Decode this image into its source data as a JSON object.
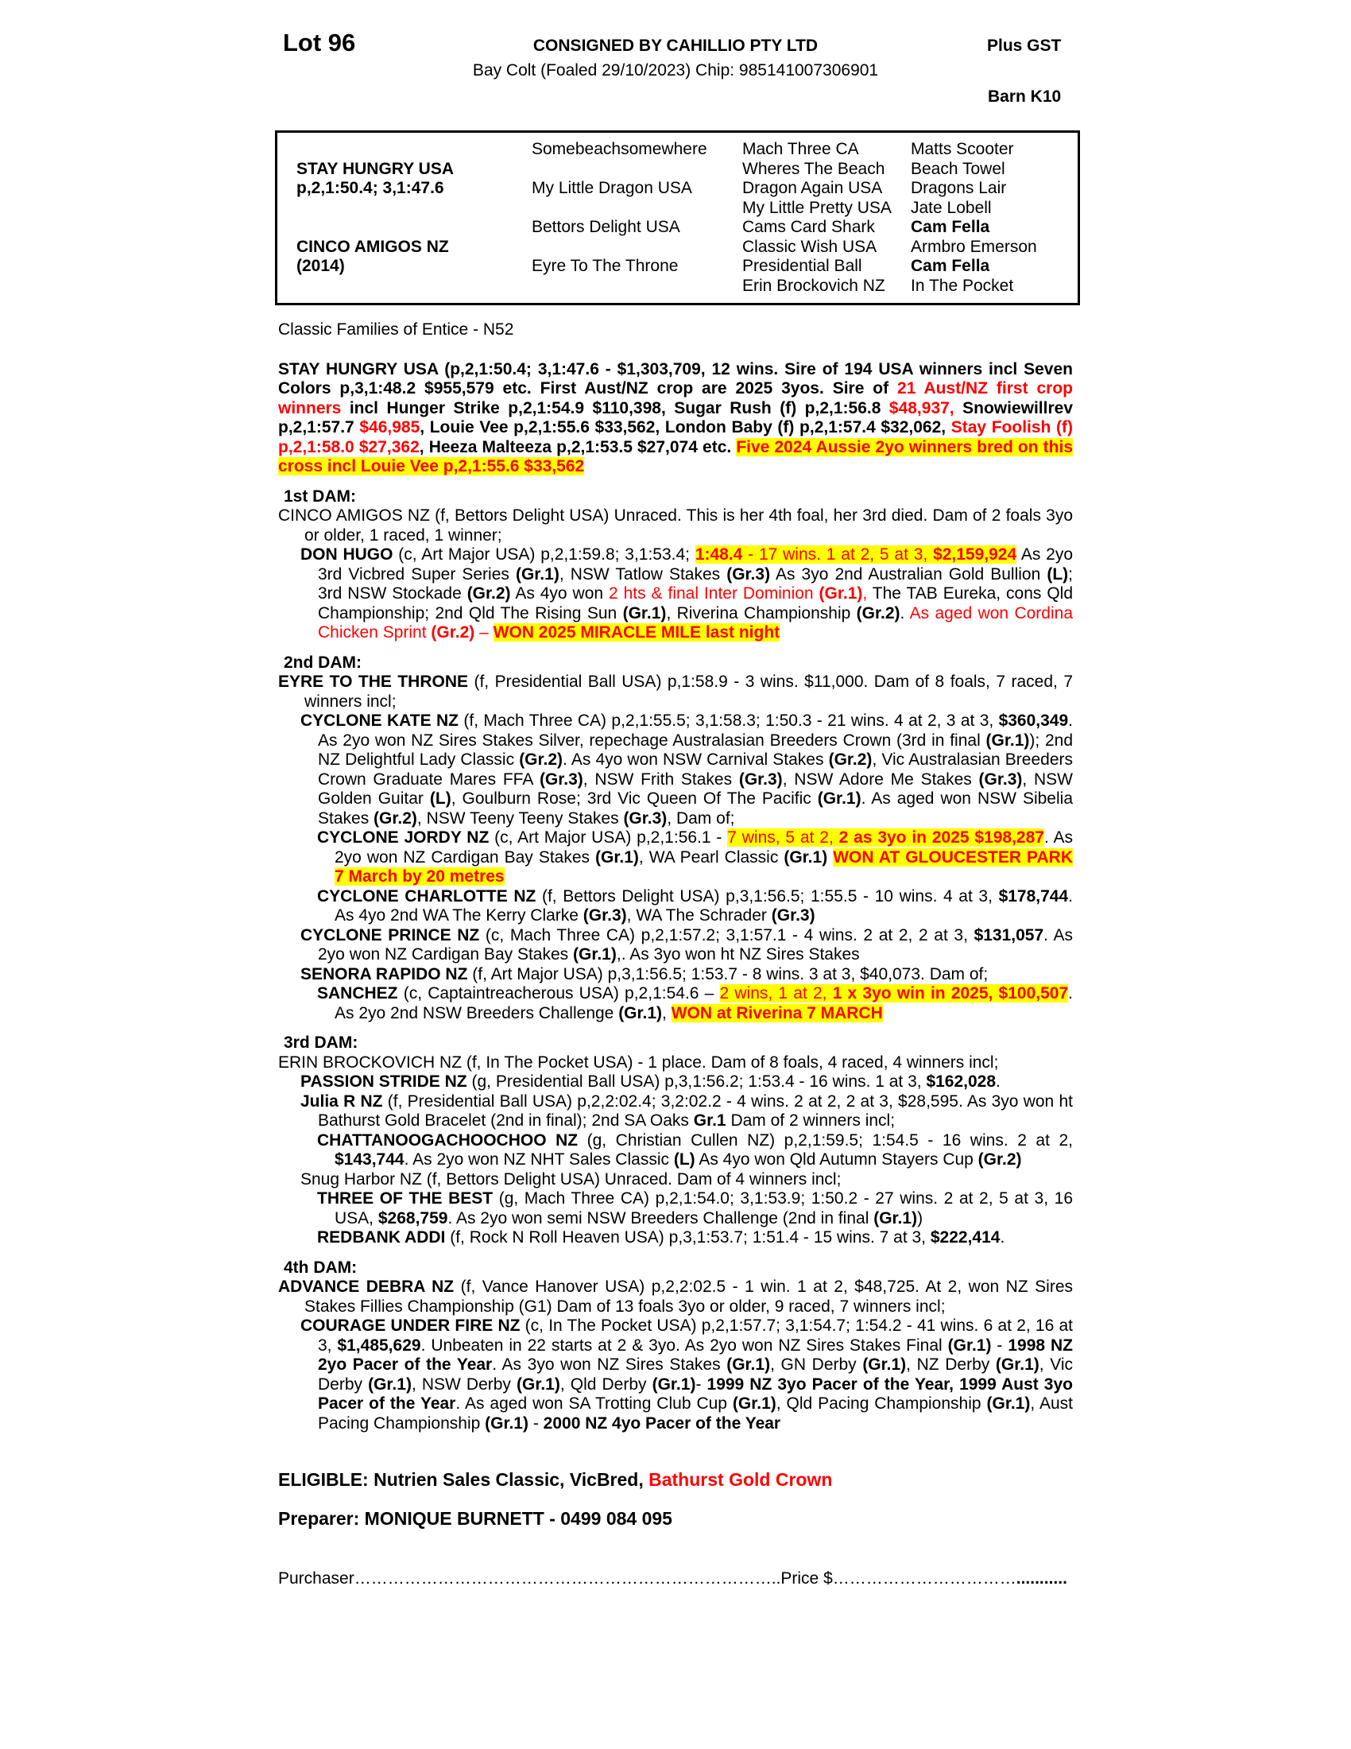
{
  "header": {
    "lot": "Lot 96",
    "consignor": "CONSIGNED BY CAHILLIO PTY LTD",
    "foal_info": "Bay Colt (Foaled 29/10/2023) Chip: 985141007306901",
    "gst": "Plus GST",
    "barn": "Barn K10"
  },
  "pedigree_table": {
    "cells": [
      {
        "r": 1,
        "c": 2,
        "t": "Somebeachsomewhere",
        "b": false
      },
      {
        "r": 1,
        "c": 3,
        "t": "Mach Three CA",
        "b": false
      },
      {
        "r": 1,
        "c": 4,
        "t": "Matts Scooter",
        "b": false
      },
      {
        "r": 2,
        "c": 1,
        "t": "STAY HUNGRY USA",
        "b": true
      },
      {
        "r": 2,
        "c": 3,
        "t": "Wheres The Beach",
        "b": false
      },
      {
        "r": 2,
        "c": 4,
        "t": "Beach Towel",
        "b": false
      },
      {
        "r": 3,
        "c": 1,
        "t": "p,2,1:50.4; 3,1:47.6",
        "b": true
      },
      {
        "r": 3,
        "c": 2,
        "t": "My Little Dragon USA",
        "b": false
      },
      {
        "r": 3,
        "c": 3,
        "t": "Dragon Again USA",
        "b": false
      },
      {
        "r": 3,
        "c": 4,
        "t": "Dragons Lair",
        "b": false
      },
      {
        "r": 4,
        "c": 3,
        "t": "My Little Pretty USA",
        "b": false
      },
      {
        "r": 4,
        "c": 4,
        "t": "Jate Lobell",
        "b": false
      },
      {
        "r": 5,
        "c": 2,
        "t": "Bettors Delight USA",
        "b": false
      },
      {
        "r": 5,
        "c": 3,
        "t": "Cams Card Shark",
        "b": false
      },
      {
        "r": 5,
        "c": 4,
        "t": "Cam Fella",
        "b": true
      },
      {
        "r": 6,
        "c": 1,
        "t": "CINCO AMIGOS NZ",
        "b": true
      },
      {
        "r": 6,
        "c": 3,
        "t": "Classic Wish USA",
        "b": false
      },
      {
        "r": 6,
        "c": 4,
        "t": "Armbro Emerson",
        "b": false
      },
      {
        "r": 7,
        "c": 1,
        "t": "(2014)",
        "b": true
      },
      {
        "r": 7,
        "c": 2,
        "t": "Eyre To The Throne",
        "b": false
      },
      {
        "r": 7,
        "c": 3,
        "t": "Presidential Ball",
        "b": false
      },
      {
        "r": 7,
        "c": 4,
        "t": "Cam Fella",
        "b": true
      },
      {
        "r": 8,
        "c": 3,
        "t": "Erin Brockovich NZ",
        "b": false
      },
      {
        "r": 8,
        "c": 4,
        "t": "In The Pocket",
        "b": false
      }
    ]
  },
  "family_line": "Classic Families of Entice - N52",
  "headings": {
    "dam1": "1st DAM:",
    "dam2": "2nd DAM:",
    "dam3": "3rd DAM:",
    "dam4": "4th DAM:"
  },
  "colors": {
    "highlight": "#ffff00",
    "accent_red": "#ff0000",
    "text": "#000000"
  },
  "paragraphs": {
    "sire": [
      {
        "t": "STAY HUNGRY USA (p,2,1:50.4; 3,1:47.6 - $1,303,709, 12 wins. Sire of 194 USA winners incl Seven Colors p,3,1:48.2 $955,579 etc. First Aust/NZ  crop are 2025 3yos. Sire of ",
        "s": ""
      },
      {
        "t": "21 Aust/NZ first crop winners",
        "s": "rb"
      },
      {
        "t": " incl Hunger Strike p,2,1:54.9 $110,398, Sugar Rush (f) p,2,1:56.8 ",
        "s": ""
      },
      {
        "t": "$48,937,",
        "s": "rb"
      },
      {
        "t": " Snowiewillrev p,2,1:57.7 ",
        "s": ""
      },
      {
        "t": "$46,985",
        "s": "rb"
      },
      {
        "t": ", Louie Vee p,2,1:55.6 $33,562, London Baby (f) p,2,1:57.4 $32,062, ",
        "s": ""
      },
      {
        "t": "Stay Foolish (f) p,2,1:58.0 $27,362",
        "s": "rb"
      },
      {
        "t": ", Heeza Malteeza p,2,1:53.5 $27,074 etc. ",
        "s": ""
      },
      {
        "t": "Five 2024 Aussie 2yo winners bred on this cross incl Louie Vee p,2,1:55.6 $33,562",
        "s": "hrb"
      }
    ],
    "cinco": [
      {
        "t": "CINCO AMIGOS NZ (f, Bettors Delight USA) Unraced. This is her 4th foal, her 3rd died. Dam of 2 foals 3yo or older, 1 raced, 1 winner;",
        "s": ""
      }
    ],
    "don_hugo": [
      {
        "t": "DON HUGO",
        "s": "b"
      },
      {
        "t": " (c, Art Major USA) p,2,1:59.8; 3,1:53.4; ",
        "s": ""
      },
      {
        "t": "1:48.4",
        "s": "hrb"
      },
      {
        "t": " - 17 wins. 1 at 2, 5 at 3, ",
        "s": "hr"
      },
      {
        "t": "$2,159,924",
        "s": "hrb"
      },
      {
        "t": " As 2yo 3rd Vicbred Super Series ",
        "s": ""
      },
      {
        "t": "(Gr.1)",
        "s": "b"
      },
      {
        "t": ", NSW Tatlow Stakes ",
        "s": ""
      },
      {
        "t": "(Gr.3)",
        "s": "b"
      },
      {
        "t": " As 3yo 2nd Australian Gold Bullion ",
        "s": ""
      },
      {
        "t": "(L)",
        "s": "b"
      },
      {
        "t": "; 3rd NSW Stockade ",
        "s": ""
      },
      {
        "t": "(Gr.2)",
        "s": "b"
      },
      {
        "t": " As 4yo won  ",
        "s": ""
      },
      {
        "t": "2 hts & final Inter Dominion ",
        "s": "r"
      },
      {
        "t": "(Gr.1)",
        "s": "rb"
      },
      {
        "t": ",",
        "s": "r"
      },
      {
        "t": " The TAB Eureka, cons Qld Championship; 2nd Qld The Rising Sun ",
        "s": ""
      },
      {
        "t": "(Gr.1)",
        "s": "b"
      },
      {
        "t": ", Riverina Championship ",
        "s": ""
      },
      {
        "t": "(Gr.2)",
        "s": "b"
      },
      {
        "t": ". ",
        "s": ""
      },
      {
        "t": "As aged won Cordina Chicken Sprint ",
        "s": "r"
      },
      {
        "t": "(Gr.2)",
        "s": "rb"
      },
      {
        "t": " – ",
        "s": "r"
      },
      {
        "t": "WON 2025 MIRACLE MILE last night",
        "s": "hrb"
      }
    ],
    "eyre": [
      {
        "t": "EYRE TO THE THRONE",
        "s": "b"
      },
      {
        "t": " (f, Presidential Ball USA) p,1:58.9 - 3 wins. $11,000. Dam of 8 foals, 7 raced, 7 winners incl;",
        "s": ""
      }
    ],
    "cyclone_kate": [
      {
        "t": "CYCLONE KATE NZ",
        "s": "b"
      },
      {
        "t": " (f, Mach Three CA) p,2,1:55.5; 3,1:58.3; 1:50.3 - 21 wins. 4 at 2, 3 at 3, ",
        "s": ""
      },
      {
        "t": "$360,349",
        "s": "b"
      },
      {
        "t": ". As 2yo won NZ Sires Stakes Silver, repechage Australasian Breeders Crown (3rd in final ",
        "s": ""
      },
      {
        "t": "(Gr.1)",
        "s": "b"
      },
      {
        "t": "); 2nd NZ Delightful Lady Classic ",
        "s": ""
      },
      {
        "t": "(Gr.2)",
        "s": "b"
      },
      {
        "t": ". As 4yo won NSW Carnival Stakes ",
        "s": ""
      },
      {
        "t": "(Gr.2)",
        "s": "b"
      },
      {
        "t": ", Vic Australasian Breeders Crown Graduate Mares FFA ",
        "s": ""
      },
      {
        "t": "(Gr.3)",
        "s": "b"
      },
      {
        "t": ", NSW Frith Stakes ",
        "s": ""
      },
      {
        "t": "(Gr.3)",
        "s": "b"
      },
      {
        "t": ", NSW Adore Me Stakes ",
        "s": ""
      },
      {
        "t": "(Gr.3)",
        "s": "b"
      },
      {
        "t": ", NSW Golden Guitar ",
        "s": ""
      },
      {
        "t": "(L)",
        "s": "b"
      },
      {
        "t": ", Goulburn Rose; 3rd Vic Queen Of The Pacific ",
        "s": ""
      },
      {
        "t": "(Gr.1)",
        "s": "b"
      },
      {
        "t": ". As aged won NSW Sibelia Stakes ",
        "s": ""
      },
      {
        "t": "(Gr.2)",
        "s": "b"
      },
      {
        "t": ", NSW Teeny Teeny Stakes ",
        "s": ""
      },
      {
        "t": "(Gr.3)",
        "s": "b"
      },
      {
        "t": ", Dam of;",
        "s": ""
      }
    ],
    "cyclone_jordy": [
      {
        "t": "CYCLONE JORDY NZ",
        "s": "b"
      },
      {
        "t": " (c, Art Major USA) p,2,1:56.1 - ",
        "s": ""
      },
      {
        "t": "7 wins, 5 at 2, ",
        "s": "hr"
      },
      {
        "t": "2 as 3yo in 2025 $198,287",
        "s": "hrb"
      },
      {
        "t": ". As 2yo won NZ Cardigan Bay Stakes ",
        "s": ""
      },
      {
        "t": "(Gr.1)",
        "s": "b"
      },
      {
        "t": ", WA Pearl Classic ",
        "s": ""
      },
      {
        "t": "(Gr.1)",
        "s": "b"
      },
      {
        "t": " ",
        "s": ""
      },
      {
        "t": "WON AT GLOUCESTER PARK 7 March by 20 metres",
        "s": "hrb"
      }
    ],
    "cyclone_charlotte": [
      {
        "t": "CYCLONE CHARLOTTE NZ",
        "s": "b"
      },
      {
        "t": " (f, Bettors Delight USA) p,3,1:56.5; 1:55.5 - 10 wins. 4 at 3, ",
        "s": ""
      },
      {
        "t": "$178,744",
        "s": "b"
      },
      {
        "t": ". As 4yo 2nd WA The Kerry Clarke ",
        "s": ""
      },
      {
        "t": "(Gr.3)",
        "s": "b"
      },
      {
        "t": ", WA The Schrader ",
        "s": ""
      },
      {
        "t": "(Gr.3)",
        "s": "b"
      }
    ],
    "cyclone_prince": [
      {
        "t": "CYCLONE PRINCE NZ",
        "s": "b"
      },
      {
        "t": " (c, Mach Three CA) p,2,1:57.2; 3,1:57.1 - 4 wins. 2 at 2, 2 at 3, ",
        "s": ""
      },
      {
        "t": "$131,057",
        "s": "b"
      },
      {
        "t": ". As 2yo won NZ Cardigan Bay Stakes ",
        "s": ""
      },
      {
        "t": "(Gr.1)",
        "s": "b"
      },
      {
        "t": ",. As 3yo won ht NZ Sires Stakes",
        "s": ""
      }
    ],
    "senora_rapido": [
      {
        "t": "SENORA RAPIDO NZ",
        "s": "b"
      },
      {
        "t": " (f, Art Major USA) p,3,1:56.5; 1:53.7 - 8 wins. 3 at 3, $40,073. Dam of;",
        "s": ""
      }
    ],
    "sanchez": [
      {
        "t": "SANCHEZ",
        "s": "b"
      },
      {
        "t": " (c, Captaintreacherous USA) p,2,1:54.6 – ",
        "s": ""
      },
      {
        "t": "2 wins, 1 at 2, ",
        "s": "hr"
      },
      {
        "t": "1 x 3yo win in 2025, $100,507",
        "s": "hrb"
      },
      {
        "t": ". As 2yo 2nd NSW Breeders Challenge ",
        "s": ""
      },
      {
        "t": "(Gr.1)",
        "s": "b"
      },
      {
        "t": ", ",
        "s": ""
      },
      {
        "t": "WON at Riverina 7 MARCH",
        "s": "hrb"
      }
    ],
    "erin": [
      {
        "t": "ERIN BROCKOVICH NZ (f, In The Pocket USA) - 1 place. Dam of 8 foals, 4 raced, 4 winners incl;",
        "s": ""
      }
    ],
    "passion_stride": [
      {
        "t": "PASSION STRIDE NZ",
        "s": "b"
      },
      {
        "t": " (g, Presidential Ball USA) p,3,1:56.2; 1:53.4 - 16 wins. 1 at 3, ",
        "s": ""
      },
      {
        "t": "$162,028",
        "s": "b"
      },
      {
        "t": ".",
        "s": ""
      }
    ],
    "julia_r": [
      {
        "t": "Julia R NZ",
        "s": "b"
      },
      {
        "t": " (f, Presidential Ball USA) p,2,2:02.4; 3,2:02.2 - 4 wins. 2 at 2, 2 at 3, $28,595. As 3yo won ht Bathurst Gold Bracelet (2nd in final); 2nd SA Oaks ",
        "s": ""
      },
      {
        "t": "Gr.1",
        "s": "b"
      },
      {
        "t": " Dam of 2 winners incl;",
        "s": ""
      }
    ],
    "chattanooga": [
      {
        "t": "CHATTANOOGACHOOCHOO NZ",
        "s": "b"
      },
      {
        "t": " (g, Christian Cullen NZ) p,2,1:59.5; 1:54.5 - 16 wins. 2 at 2, ",
        "s": ""
      },
      {
        "t": "$143,744",
        "s": "b"
      },
      {
        "t": ". As 2yo won NZ NHT Sales Classic ",
        "s": ""
      },
      {
        "t": "(L)",
        "s": "b"
      },
      {
        "t": " As 4yo won Qld Autumn Stayers Cup ",
        "s": ""
      },
      {
        "t": "(Gr.2)",
        "s": "b"
      }
    ],
    "snug_harbor": [
      {
        "t": "Snug Harbor NZ (f, Bettors Delight USA) Unraced. Dam of 4 winners incl;",
        "s": ""
      }
    ],
    "three_of_the_best": [
      {
        "t": "THREE OF THE BEST",
        "s": "b"
      },
      {
        "t": " (g, Mach Three CA) p,2,1:54.0; 3,1:53.9; 1:50.2 - 27 wins. 2 at 2, 5 at 3, 16 USA, ",
        "s": ""
      },
      {
        "t": "$268,759",
        "s": "b"
      },
      {
        "t": ". As 2yo won semi NSW Breeders Challenge (2nd in final ",
        "s": ""
      },
      {
        "t": "(Gr.1)",
        "s": "b"
      },
      {
        "t": ")",
        "s": ""
      }
    ],
    "redbank_addi": [
      {
        "t": "REDBANK ADDI",
        "s": "b"
      },
      {
        "t": " (f, Rock N Roll Heaven USA) p,3,1:53.7; 1:51.4 - 15 wins. 7 at 3, ",
        "s": ""
      },
      {
        "t": "$222,414",
        "s": "b"
      },
      {
        "t": ".",
        "s": ""
      }
    ],
    "advance_debra": [
      {
        "t": "ADVANCE DEBRA NZ",
        "s": "b"
      },
      {
        "t": " (f, Vance Hanover USA) p,2,2:02.5 - 1 win. 1 at 2, $48,725. At 2, won NZ Sires Stakes Fillies Championship (G1) Dam of 13 foals 3yo or older, 9 raced, 7 winners incl;",
        "s": ""
      }
    ],
    "courage_under_fire": [
      {
        "t": "COURAGE UNDER FIRE NZ",
        "s": "b"
      },
      {
        "t": " (c, In The Pocket USA) p,2,1:57.7; 3,1:54.7; 1:54.2 - 41 wins. 6 at 2, 16 at 3, ",
        "s": ""
      },
      {
        "t": "$1,485,629",
        "s": "b"
      },
      {
        "t": ". Unbeaten in 22 starts at 2 & 3yo. As 2yo won NZ Sires Stakes Final ",
        "s": ""
      },
      {
        "t": "(Gr.1)",
        "s": "b"
      },
      {
        "t": " - ",
        "s": ""
      },
      {
        "t": "1998 NZ 2yo Pacer of the Year",
        "s": "b"
      },
      {
        "t": ". As 3yo won NZ Sires Stakes ",
        "s": ""
      },
      {
        "t": "(Gr.1)",
        "s": "b"
      },
      {
        "t": ", GN Derby ",
        "s": ""
      },
      {
        "t": "(Gr.1)",
        "s": "b"
      },
      {
        "t": ", NZ Derby ",
        "s": ""
      },
      {
        "t": "(Gr.1)",
        "s": "b"
      },
      {
        "t": ", Vic Derby ",
        "s": ""
      },
      {
        "t": "(Gr.1)",
        "s": "b"
      },
      {
        "t": ", NSW Derby ",
        "s": ""
      },
      {
        "t": "(Gr.1)",
        "s": "b"
      },
      {
        "t": ", Qld Derby ",
        "s": ""
      },
      {
        "t": "(Gr.1)",
        "s": "b"
      },
      {
        "t": "- ",
        "s": ""
      },
      {
        "t": "1999 NZ 3yo Pacer of the Year, 1999 Aust 3yo Pacer of the Year",
        "s": "b"
      },
      {
        "t": ". As aged won SA Trotting Club Cup ",
        "s": ""
      },
      {
        "t": "(Gr.1)",
        "s": "b"
      },
      {
        "t": ", Qld Pacing Championship ",
        "s": ""
      },
      {
        "t": "(Gr.1)",
        "s": "b"
      },
      {
        "t": ", Aust Pacing Championship ",
        "s": ""
      },
      {
        "t": "(Gr.1)",
        "s": "b"
      },
      {
        "t": " - ",
        "s": ""
      },
      {
        "t": "2000 NZ 4yo Pacer of the Year",
        "s": "b"
      }
    ],
    "eligible": [
      {
        "t": "ELIGIBLE: Nutrien Sales Classic, VicBred, ",
        "s": ""
      },
      {
        "t": "Bathurst Gold Crown",
        "s": "rb"
      }
    ],
    "preparer": [
      {
        "t": "Preparer: MONIQUE BURNETT - 0499 084 095",
        "s": ""
      }
    ],
    "purchaser": [
      {
        "t": "Purchaser",
        "s": ""
      },
      {
        "t": "…………………………………………………………………..",
        "s": ""
      },
      {
        "t": "Price $",
        "s": ""
      },
      {
        "t": "……………………………",
        "s": ""
      },
      {
        "t": "...........",
        "s": "b"
      }
    ]
  }
}
